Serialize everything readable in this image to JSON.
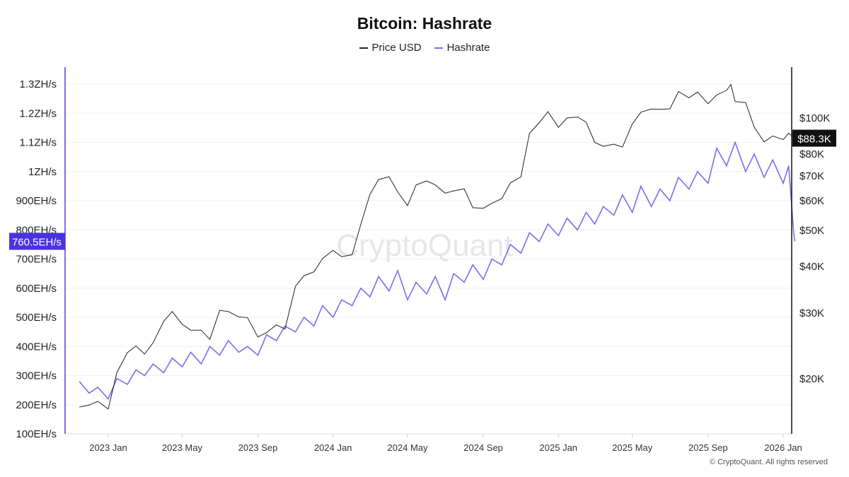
{
  "chart_data": {
    "type": "line",
    "title": "Bitcoin: Hashrate",
    "legend": [
      {
        "name": "Price USD",
        "color": "#222222"
      },
      {
        "name": "Hashrate",
        "color": "#7b6cf0"
      }
    ],
    "legend_placement": "top-center",
    "grid": true,
    "watermark": "CryptoQuant",
    "footer": "© CryptoQuant. All rights reserved",
    "x_ticks": [
      {
        "date": "2023-01-01",
        "label": "2023 Jan"
      },
      {
        "date": "2023-05-01",
        "label": "2023 May"
      },
      {
        "date": "2023-09-01",
        "label": "2023 Sep"
      },
      {
        "date": "2024-01-01",
        "label": "2024 Jan"
      },
      {
        "date": "2024-05-01",
        "label": "2024 May"
      },
      {
        "date": "2024-09-01",
        "label": "2024 Sep"
      },
      {
        "date": "2025-01-01",
        "label": "2025 Jan"
      },
      {
        "date": "2025-05-01",
        "label": "2025 May"
      },
      {
        "date": "2025-09-01",
        "label": "2025 Sep"
      },
      {
        "date": "2026-01-01",
        "label": "2026 Jan"
      }
    ],
    "xlim": [
      "2022-11-10",
      "2026-01-22"
    ],
    "left_axis": {
      "unit": "EH/s",
      "ylim": [
        100,
        1300
      ],
      "ticks": [
        {
          "v": 100,
          "label": "100EH/s"
        },
        {
          "v": 200,
          "label": "200EH/s"
        },
        {
          "v": 300,
          "label": "300EH/s"
        },
        {
          "v": 400,
          "label": "400EH/s"
        },
        {
          "v": 500,
          "label": "500EH/s"
        },
        {
          "v": 600,
          "label": "600EH/s"
        },
        {
          "v": 700,
          "label": "700EH/s"
        },
        {
          "v": 800,
          "label": "800EH/s"
        },
        {
          "v": 900,
          "label": "900EH/s"
        },
        {
          "v": 1000,
          "label": "1ZH/s"
        },
        {
          "v": 1100,
          "label": "1.1ZH/s"
        },
        {
          "v": 1200,
          "label": "1.2ZH/s"
        },
        {
          "v": 1300,
          "label": "1.3ZH/s"
        }
      ],
      "current": {
        "v": 760.5,
        "label": "760.5EH/s",
        "color": "#4a32e0"
      }
    },
    "right_axis": {
      "unit": "USD",
      "scale": "log",
      "ylim": [
        14000,
        130000
      ],
      "ticks": [
        {
          "v": 20000,
          "label": "$20K"
        },
        {
          "v": 30000,
          "label": "$30K"
        },
        {
          "v": 40000,
          "label": "$40K"
        },
        {
          "v": 50000,
          "label": "$50K"
        },
        {
          "v": 60000,
          "label": "$60K"
        },
        {
          "v": 70000,
          "label": "$70K"
        },
        {
          "v": 80000,
          "label": "$80K"
        },
        {
          "v": 100000,
          "label": "$100K"
        }
      ],
      "current": {
        "v": 88300,
        "label": "$88.3K",
        "color": "#111111"
      }
    },
    "series": [
      {
        "name": "Hashrate",
        "axis": "left",
        "color": "#7b6cf0",
        "points": [
          [
            "2022-11-15",
            280
          ],
          [
            "2022-12-01",
            240
          ],
          [
            "2022-12-15",
            260
          ],
          [
            "2023-01-01",
            220
          ],
          [
            "2023-01-15",
            290
          ],
          [
            "2023-02-01",
            270
          ],
          [
            "2023-02-15",
            320
          ],
          [
            "2023-03-01",
            300
          ],
          [
            "2023-03-15",
            340
          ],
          [
            "2023-04-01",
            310
          ],
          [
            "2023-04-15",
            360
          ],
          [
            "2023-05-01",
            330
          ],
          [
            "2023-05-15",
            380
          ],
          [
            "2023-06-01",
            340
          ],
          [
            "2023-06-15",
            400
          ],
          [
            "2023-07-01",
            370
          ],
          [
            "2023-07-15",
            420
          ],
          [
            "2023-08-01",
            380
          ],
          [
            "2023-08-15",
            400
          ],
          [
            "2023-09-01",
            370
          ],
          [
            "2023-09-15",
            440
          ],
          [
            "2023-10-01",
            420
          ],
          [
            "2023-10-15",
            470
          ],
          [
            "2023-11-01",
            450
          ],
          [
            "2023-11-15",
            500
          ],
          [
            "2023-12-01",
            470
          ],
          [
            "2023-12-15",
            540
          ],
          [
            "2024-01-01",
            500
          ],
          [
            "2024-01-15",
            560
          ],
          [
            "2024-02-01",
            540
          ],
          [
            "2024-02-15",
            600
          ],
          [
            "2024-03-01",
            570
          ],
          [
            "2024-03-15",
            640
          ],
          [
            "2024-04-01",
            590
          ],
          [
            "2024-04-15",
            660
          ],
          [
            "2024-05-01",
            560
          ],
          [
            "2024-05-15",
            620
          ],
          [
            "2024-06-01",
            580
          ],
          [
            "2024-06-15",
            640
          ],
          [
            "2024-07-01",
            560
          ],
          [
            "2024-07-15",
            650
          ],
          [
            "2024-08-01",
            620
          ],
          [
            "2024-08-15",
            680
          ],
          [
            "2024-09-01",
            630
          ],
          [
            "2024-09-15",
            700
          ],
          [
            "2024-10-01",
            680
          ],
          [
            "2024-10-15",
            750
          ],
          [
            "2024-11-01",
            720
          ],
          [
            "2024-11-15",
            790
          ],
          [
            "2024-12-01",
            760
          ],
          [
            "2024-12-15",
            820
          ],
          [
            "2025-01-01",
            780
          ],
          [
            "2025-01-15",
            840
          ],
          [
            "2025-02-01",
            800
          ],
          [
            "2025-02-15",
            860
          ],
          [
            "2025-03-01",
            820
          ],
          [
            "2025-03-15",
            880
          ],
          [
            "2025-04-01",
            850
          ],
          [
            "2025-04-15",
            920
          ],
          [
            "2025-05-01",
            860
          ],
          [
            "2025-05-15",
            950
          ],
          [
            "2025-06-01",
            880
          ],
          [
            "2025-06-15",
            940
          ],
          [
            "2025-07-01",
            900
          ],
          [
            "2025-07-15",
            980
          ],
          [
            "2025-08-01",
            940
          ],
          [
            "2025-08-15",
            1000
          ],
          [
            "2025-09-01",
            960
          ],
          [
            "2025-09-15",
            1080
          ],
          [
            "2025-10-01",
            1020
          ],
          [
            "2025-10-15",
            1100
          ],
          [
            "2025-11-01",
            1000
          ],
          [
            "2025-11-15",
            1060
          ],
          [
            "2025-12-01",
            980
          ],
          [
            "2025-12-15",
            1040
          ],
          [
            "2026-01-01",
            960
          ],
          [
            "2026-01-10",
            1020
          ],
          [
            "2026-01-18",
            790
          ],
          [
            "2026-01-20",
            760.5
          ]
        ]
      },
      {
        "name": "Price USD",
        "axis": "right",
        "color": "#222222",
        "points": [
          [
            "2022-11-15",
            16800
          ],
          [
            "2022-12-01",
            17000
          ],
          [
            "2022-12-15",
            17400
          ],
          [
            "2023-01-01",
            16600
          ],
          [
            "2023-01-15",
            20800
          ],
          [
            "2023-02-01",
            23500
          ],
          [
            "2023-02-15",
            24500
          ],
          [
            "2023-03-01",
            23300
          ],
          [
            "2023-03-15",
            25000
          ],
          [
            "2023-04-01",
            28500
          ],
          [
            "2023-04-15",
            30300
          ],
          [
            "2023-05-01",
            28000
          ],
          [
            "2023-05-15",
            27000
          ],
          [
            "2023-06-01",
            27000
          ],
          [
            "2023-06-15",
            25500
          ],
          [
            "2023-07-01",
            30500
          ],
          [
            "2023-07-15",
            30300
          ],
          [
            "2023-08-01",
            29300
          ],
          [
            "2023-08-15",
            29200
          ],
          [
            "2023-09-01",
            25900
          ],
          [
            "2023-09-15",
            26600
          ],
          [
            "2023-10-01",
            27900
          ],
          [
            "2023-10-15",
            27200
          ],
          [
            "2023-11-01",
            35400
          ],
          [
            "2023-11-15",
            37800
          ],
          [
            "2023-12-01",
            38700
          ],
          [
            "2023-12-15",
            42000
          ],
          [
            "2024-01-01",
            44200
          ],
          [
            "2024-01-15",
            42500
          ],
          [
            "2024-02-01",
            43000
          ],
          [
            "2024-02-15",
            51800
          ],
          [
            "2024-03-01",
            62400
          ],
          [
            "2024-03-15",
            68400
          ],
          [
            "2024-04-01",
            69600
          ],
          [
            "2024-04-15",
            63400
          ],
          [
            "2024-05-01",
            58200
          ],
          [
            "2024-05-15",
            66200
          ],
          [
            "2024-06-01",
            67800
          ],
          [
            "2024-06-15",
            66200
          ],
          [
            "2024-07-01",
            62900
          ],
          [
            "2024-07-15",
            63800
          ],
          [
            "2024-08-01",
            64600
          ],
          [
            "2024-08-15",
            57500
          ],
          [
            "2024-09-01",
            57300
          ],
          [
            "2024-09-15",
            59100
          ],
          [
            "2024-10-01",
            60800
          ],
          [
            "2024-10-15",
            67000
          ],
          [
            "2024-11-01",
            69500
          ],
          [
            "2024-11-15",
            91000
          ],
          [
            "2024-12-01",
            97200
          ],
          [
            "2024-12-15",
            104000
          ],
          [
            "2025-01-01",
            94400
          ],
          [
            "2025-01-15",
            100000
          ],
          [
            "2025-02-01",
            100600
          ],
          [
            "2025-02-15",
            97500
          ],
          [
            "2025-03-01",
            86000
          ],
          [
            "2025-03-15",
            84000
          ],
          [
            "2025-04-01",
            85100
          ],
          [
            "2025-04-15",
            83600
          ],
          [
            "2025-05-01",
            96400
          ],
          [
            "2025-05-15",
            103700
          ],
          [
            "2025-06-01",
            105700
          ],
          [
            "2025-06-15",
            105500
          ],
          [
            "2025-07-01",
            105800
          ],
          [
            "2025-07-15",
            117700
          ],
          [
            "2025-08-01",
            113300
          ],
          [
            "2025-08-15",
            117400
          ],
          [
            "2025-09-01",
            109200
          ],
          [
            "2025-09-15",
            115300
          ],
          [
            "2025-10-01",
            118600
          ],
          [
            "2025-10-08",
            123000
          ],
          [
            "2025-10-15",
            110700
          ],
          [
            "2025-11-01",
            110000
          ],
          [
            "2025-11-15",
            94500
          ],
          [
            "2025-12-01",
            86300
          ],
          [
            "2025-12-15",
            89500
          ],
          [
            "2026-01-01",
            87500
          ],
          [
            "2026-01-10",
            91000
          ],
          [
            "2026-01-20",
            88300
          ]
        ]
      }
    ]
  }
}
